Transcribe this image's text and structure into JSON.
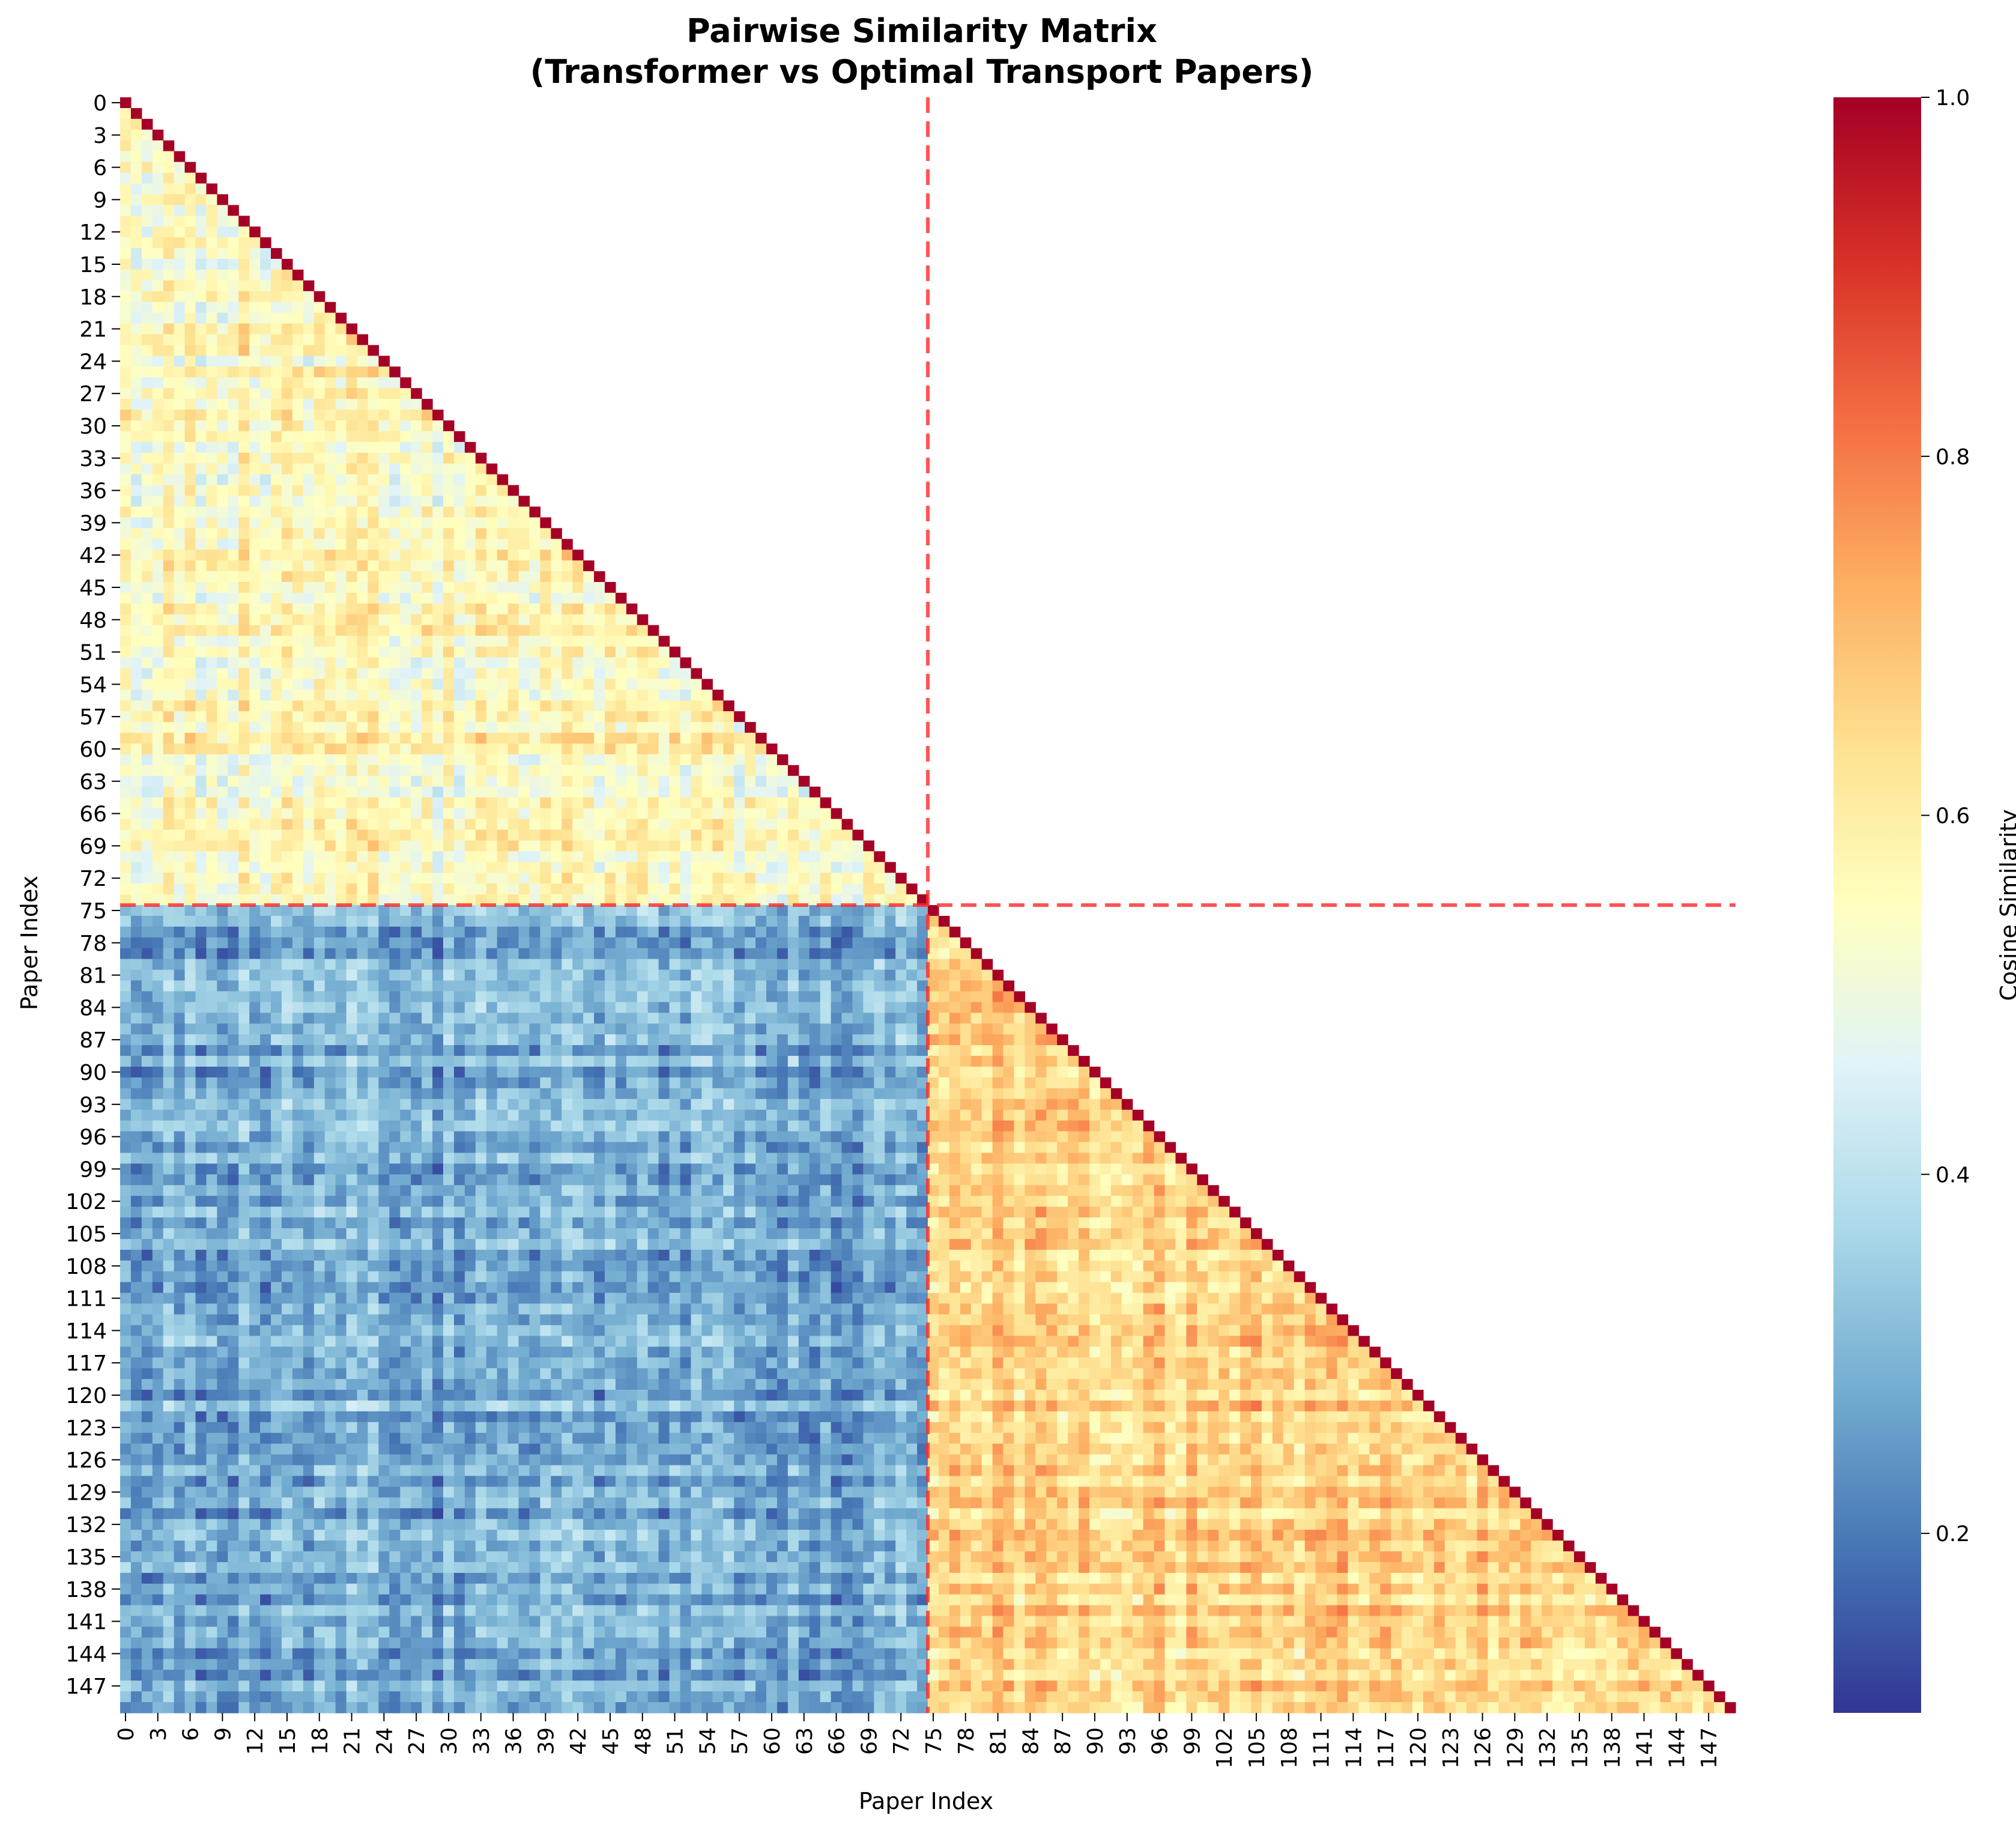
{
  "chart_data": {
    "type": "heatmap",
    "title_line1": "Pairwise Similarity Matrix",
    "title_line2": "(Transformer vs Optimal Transport Papers)",
    "xlabel": "Paper Index",
    "ylabel": "Paper Index",
    "n": 150,
    "mask": "upper-triangle",
    "tick_step": 3,
    "groups": [
      {
        "start": 0,
        "end": 74
      },
      {
        "start": 75,
        "end": 149
      }
    ],
    "divider_index": 75,
    "colorbar": {
      "label": "Cosine Similarity",
      "vmin": 0.1,
      "vmax": 1.0,
      "ticks": [
        0.2,
        0.4,
        0.6,
        0.8,
        1.0
      ],
      "colormap": "RdYlBu_r"
    },
    "approx_block_means": {
      "group1_within": 0.56,
      "group2_within": 0.66,
      "between": 0.28,
      "diagonal": 1.0
    },
    "divider_color": "#ff2a2a"
  }
}
